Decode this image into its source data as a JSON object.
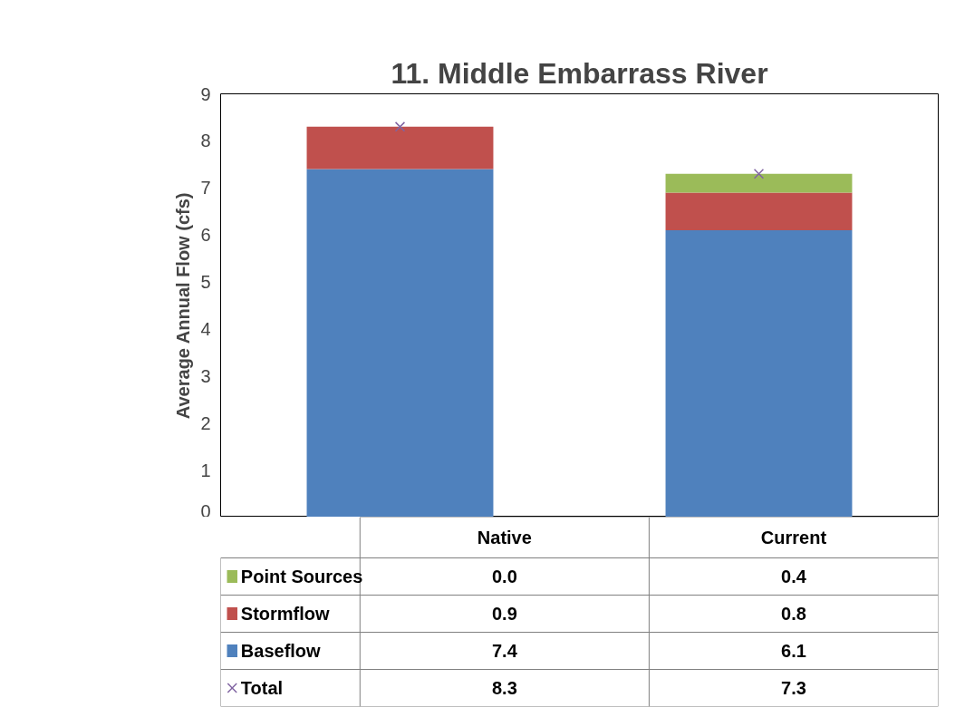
{
  "chart_data": {
    "type": "bar",
    "title": "11. Middle Embarrass River",
    "ylabel": "Average Annual Flow (cfs)",
    "categories": [
      "Native",
      "Current"
    ],
    "stacked": true,
    "series": [
      {
        "name": "Baseflow",
        "color": "#4f81bd",
        "values": [
          7.4,
          6.1
        ],
        "value_labels": [
          "7.4",
          "6.1"
        ]
      },
      {
        "name": "Stormflow",
        "color": "#c0504d",
        "values": [
          0.9,
          0.8
        ],
        "value_labels": [
          "0.9",
          "0.8"
        ]
      },
      {
        "name": "Point Sources",
        "color": "#9bbb59",
        "values": [
          0.0,
          0.4
        ],
        "value_labels": [
          "0.0",
          "0.4"
        ]
      },
      {
        "name": "Total",
        "type": "scatter",
        "marker": "cross",
        "color": "#8064a2",
        "values": [
          8.3,
          7.3
        ],
        "value_labels": [
          "8.3",
          "7.3"
        ]
      }
    ],
    "ylim": [
      0,
      9
    ],
    "yticks": [
      0,
      1,
      2,
      3,
      4,
      5,
      6,
      7,
      8,
      9
    ],
    "grid": false,
    "legend": "bottom"
  }
}
